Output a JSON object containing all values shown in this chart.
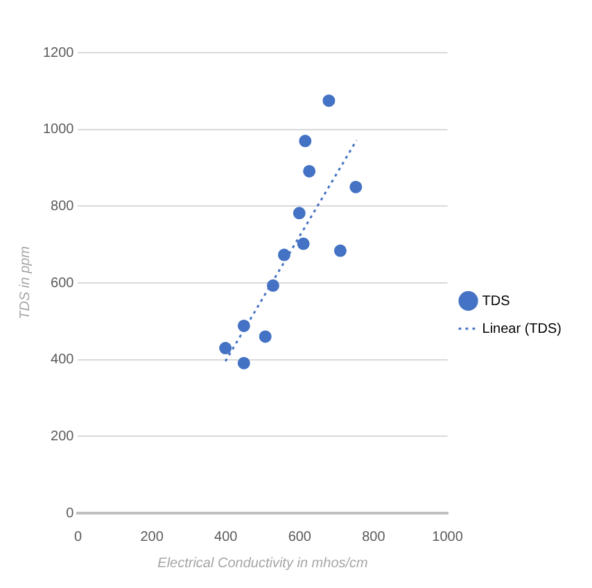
{
  "chart_data": {
    "type": "scatter",
    "xlabel": "Electrical Conductivity in mhos/cm",
    "ylabel": "TDS in ppm",
    "xlim": [
      0,
      1000
    ],
    "xticks": [
      0,
      200,
      400,
      600,
      800,
      1000
    ],
    "ylim": [
      0,
      1200
    ],
    "yticks": [
      0,
      200,
      400,
      600,
      800,
      1000,
      1200
    ],
    "grid": "y",
    "legend": "right",
    "marker": "circle",
    "series": [
      {
        "name": "TDS",
        "type": "scatter",
        "color": "#4472c4",
        "x": [
          399,
          449,
          449,
          507,
          528,
          558,
          599,
          610,
          615,
          626,
          679,
          710,
          752
        ],
        "values": [
          430,
          488,
          391,
          460,
          593,
          673,
          782,
          702,
          970,
          891,
          1075,
          684,
          850
        ]
      },
      {
        "name": "Linear (TDS)",
        "type": "line",
        "color": "#4472c4",
        "line_style": "dotted",
        "marker": "none",
        "x": [
          399,
          754
        ],
        "values": [
          396,
          972
        ]
      }
    ]
  }
}
